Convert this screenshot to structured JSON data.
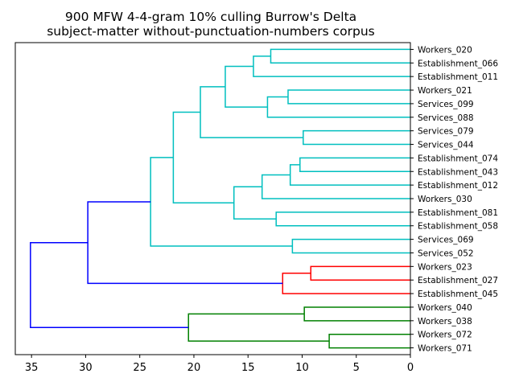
{
  "chart_data": {
    "type": "dendrogram",
    "title_lines": [
      "900 MFW 4-4-gram 10% culling Burrow's Delta",
      "subject-matter without-punctuation-numbers corpus"
    ],
    "orientation": "left",
    "x_range": [
      36.5,
      0
    ],
    "x_ticks": [
      35,
      30,
      25,
      20,
      15,
      10,
      5,
      0
    ],
    "colors": {
      "cyan": "#00bfbf",
      "red": "#ff0000",
      "green": "#008000",
      "blue": "#0000ff"
    },
    "leaves": [
      "Workers_020",
      "Establishment_066",
      "Establishment_011",
      "Workers_021",
      "Services_099",
      "Services_088",
      "Services_079",
      "Services_044",
      "Establishment_074",
      "Establishment_043",
      "Establishment_012",
      "Workers_030",
      "Establishment_081",
      "Establishment_058",
      "Services_069",
      "Services_052",
      "Workers_023",
      "Establishment_027",
      "Establishment_045",
      "Workers_040",
      "Workers_038",
      "Workers_072",
      "Workers_071"
    ],
    "merges": [
      {
        "a": 0,
        "b": 1,
        "d": 12.9,
        "color": "cyan"
      },
      {
        "a": 23,
        "b": 2,
        "d": 14.5,
        "color": "cyan"
      },
      {
        "a": 3,
        "b": 4,
        "d": 11.3,
        "color": "cyan"
      },
      {
        "a": 25,
        "b": 5,
        "d": 13.2,
        "color": "cyan"
      },
      {
        "a": 24,
        "b": 26,
        "d": 17.1,
        "color": "cyan"
      },
      {
        "a": 6,
        "b": 7,
        "d": 9.9,
        "color": "cyan"
      },
      {
        "a": 27,
        "b": 28,
        "d": 19.4,
        "color": "cyan"
      },
      {
        "a": 8,
        "b": 9,
        "d": 10.2,
        "color": "cyan"
      },
      {
        "a": 30,
        "b": 10,
        "d": 11.1,
        "color": "cyan"
      },
      {
        "a": 31,
        "b": 11,
        "d": 13.7,
        "color": "cyan"
      },
      {
        "a": 12,
        "b": 13,
        "d": 12.4,
        "color": "cyan"
      },
      {
        "a": 32,
        "b": 33,
        "d": 16.3,
        "color": "cyan"
      },
      {
        "a": 29,
        "b": 34,
        "d": 21.9,
        "color": "cyan"
      },
      {
        "a": 14,
        "b": 15,
        "d": 10.9,
        "color": "cyan"
      },
      {
        "a": 35,
        "b": 36,
        "d": 24.0,
        "color": "cyan"
      },
      {
        "a": 16,
        "b": 17,
        "d": 9.2,
        "color": "red"
      },
      {
        "a": 38,
        "b": 18,
        "d": 11.8,
        "color": "red"
      },
      {
        "a": 37,
        "b": 39,
        "d": 29.8,
        "color": "blue"
      },
      {
        "a": 19,
        "b": 20,
        "d": 9.8,
        "color": "green"
      },
      {
        "a": 21,
        "b": 22,
        "d": 7.5,
        "color": "green"
      },
      {
        "a": 41,
        "b": 42,
        "d": 20.5,
        "color": "green"
      },
      {
        "a": 40,
        "b": 43,
        "d": 35.1,
        "color": "blue"
      }
    ]
  }
}
